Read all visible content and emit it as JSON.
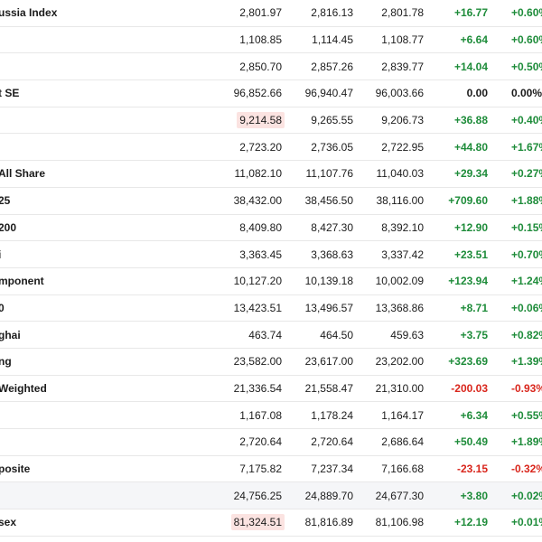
{
  "rows": [
    {
      "name": "ussia Index",
      "last": "2,801.97",
      "high": "2,816.13",
      "low": "2,801.78",
      "chg": "+16.77",
      "pct": "+0.60%",
      "dir": "pos"
    },
    {
      "name": "",
      "last": "1,108.85",
      "high": "1,114.45",
      "low": "1,108.77",
      "chg": "+6.64",
      "pct": "+0.60%",
      "dir": "pos"
    },
    {
      "name": "",
      "last": "2,850.70",
      "high": "2,857.26",
      "low": "2,839.77",
      "chg": "+14.04",
      "pct": "+0.50%",
      "dir": "pos"
    },
    {
      "name": "t SE",
      "last": "96,852.66",
      "high": "96,940.47",
      "low": "96,003.66",
      "chg": "0.00",
      "pct": "0.00%",
      "dir": "zero"
    },
    {
      "name": "",
      "last": "9,214.58",
      "high": "9,265.55",
      "low": "9,206.73",
      "chg": "+36.88",
      "pct": "+0.40%",
      "dir": "pos",
      "flash": true
    },
    {
      "name": "",
      "last": "2,723.20",
      "high": "2,736.05",
      "low": "2,722.95",
      "chg": "+44.80",
      "pct": "+1.67%",
      "dir": "pos"
    },
    {
      "name": "All Share",
      "last": "11,082.10",
      "high": "11,107.76",
      "low": "11,040.03",
      "chg": "+29.34",
      "pct": "+0.27%",
      "dir": "pos"
    },
    {
      "name": "25",
      "last": "38,432.00",
      "high": "38,456.50",
      "low": "38,116.00",
      "chg": "+709.60",
      "pct": "+1.88%",
      "dir": "pos"
    },
    {
      "name": "200",
      "last": "8,409.80",
      "high": "8,427.30",
      "low": "8,392.10",
      "chg": "+12.90",
      "pct": "+0.15%",
      "dir": "pos"
    },
    {
      "name": "i",
      "last": "3,363.45",
      "high": "3,368.63",
      "low": "3,337.42",
      "chg": "+23.51",
      "pct": "+0.70%",
      "dir": "pos"
    },
    {
      "name": "mponent",
      "last": "10,127.20",
      "high": "10,139.18",
      "low": "10,002.09",
      "chg": "+123.94",
      "pct": "+1.24%",
      "dir": "pos"
    },
    {
      "name": "0",
      "last": "13,423.51",
      "high": "13,496.57",
      "low": "13,368.86",
      "chg": "+8.71",
      "pct": "+0.06%",
      "dir": "pos"
    },
    {
      "name": "ghai",
      "last": "463.74",
      "high": "464.50",
      "low": "459.63",
      "chg": "+3.75",
      "pct": "+0.82%",
      "dir": "pos"
    },
    {
      "name": "ng",
      "last": "23,582.00",
      "high": "23,617.00",
      "low": "23,202.00",
      "chg": "+323.69",
      "pct": "+1.39%",
      "dir": "pos"
    },
    {
      "name": "Weighted",
      "last": "21,336.54",
      "high": "21,558.47",
      "low": "21,310.00",
      "chg": "-200.03",
      "pct": "-0.93%",
      "dir": "neg"
    },
    {
      "name": "",
      "last": "1,167.08",
      "high": "1,178.24",
      "low": "1,164.17",
      "chg": "+6.34",
      "pct": "+0.55%",
      "dir": "pos"
    },
    {
      "name": "",
      "last": "2,720.64",
      "high": "2,720.64",
      "low": "2,686.64",
      "chg": "+50.49",
      "pct": "+1.89%",
      "dir": "pos"
    },
    {
      "name": "posite",
      "last": "7,175.82",
      "high": "7,237.34",
      "low": "7,166.68",
      "chg": "-23.15",
      "pct": "-0.32%",
      "dir": "neg"
    },
    {
      "name": "",
      "last": "24,756.25",
      "high": "24,889.70",
      "low": "24,677.30",
      "chg": "+3.80",
      "pct": "+0.02%",
      "dir": "pos",
      "shaded": true
    },
    {
      "name": "sex",
      "last": "81,324.51",
      "high": "81,816.89",
      "low": "81,106.98",
      "chg": "+12.19",
      "pct": "+0.01%",
      "dir": "pos",
      "flash": true
    }
  ]
}
